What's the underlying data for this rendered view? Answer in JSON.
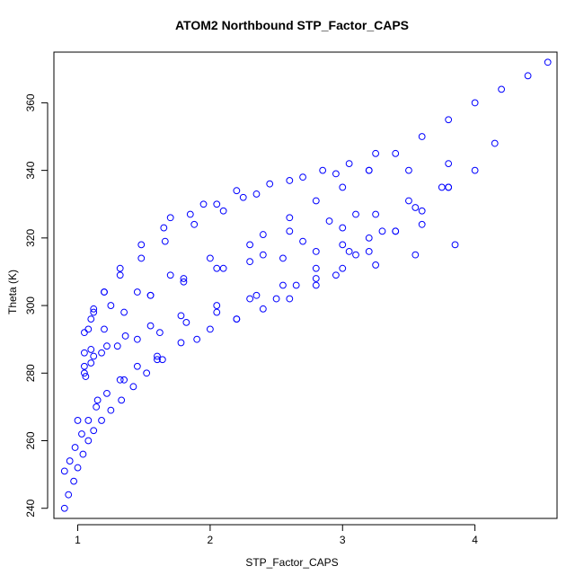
{
  "chart_data": {
    "type": "scatter",
    "title": "ATOM2 Northbound STP_Factor_CAPS",
    "xlabel": "STP_Factor_CAPS",
    "ylabel": "Theta (K)",
    "xlim": [
      0.82,
      4.62
    ],
    "ylim": [
      237,
      375
    ],
    "x_ticks": [
      1,
      2,
      3,
      4
    ],
    "y_ticks": [
      240,
      260,
      280,
      300,
      320,
      340,
      360
    ],
    "marker": "open-circle",
    "color": "#0000ff",
    "grid": false,
    "legend": "none",
    "series": [
      {
        "x": [
          0.9,
          0.93,
          0.97,
          1.0,
          1.04,
          1.08,
          1.12,
          1.18,
          1.25,
          1.33,
          1.42,
          1.52,
          1.64
        ],
        "y": [
          240,
          244,
          248,
          252,
          256,
          260,
          263,
          266,
          269,
          272,
          276,
          280,
          284
        ]
      },
      {
        "x": [
          0.9,
          0.94,
          0.98,
          1.03,
          1.08,
          1.14,
          1.22,
          1.32,
          1.45,
          1.6,
          1.78,
          2.0,
          2.2,
          2.4,
          2.6,
          2.8,
          3.0,
          3.2,
          3.4,
          3.6,
          3.8
        ],
        "y": [
          251,
          254,
          258,
          262,
          266,
          270,
          274,
          278,
          282,
          285,
          289,
          293,
          296,
          299,
          302,
          306,
          311,
          316,
          322,
          328,
          335
        ]
      },
      {
        "x": [
          1.05,
          1.08,
          1.12,
          1.2,
          1.32,
          1.48,
          1.66,
          1.88,
          2.1,
          2.35,
          2.6,
          2.85,
          3.05,
          3.25
        ],
        "y": [
          286,
          293,
          299,
          304,
          309,
          314,
          319,
          324,
          328,
          333,
          337,
          340,
          342,
          345
        ]
      },
      {
        "x": [
          1.05,
          1.1,
          1.2,
          1.35,
          1.55,
          1.8,
          2.1,
          2.4,
          2.7,
          3.0,
          3.25,
          3.5,
          3.75,
          4.0,
          4.15
        ],
        "y": [
          280,
          287,
          293,
          298,
          303,
          307,
          311,
          315,
          319,
          323,
          327,
          331,
          335,
          340,
          348
        ]
      },
      {
        "x": [
          1.06,
          1.1,
          1.18,
          1.3,
          1.45,
          1.62,
          1.82,
          2.05,
          2.3,
          2.55,
          2.8,
          3.05,
          3.3,
          3.55,
          3.8
        ],
        "y": [
          279,
          283,
          286,
          288,
          290,
          292,
          295,
          298,
          302,
          306,
          311,
          316,
          322,
          329,
          335
        ]
      },
      {
        "x": [
          1.05,
          1.12,
          1.22,
          1.36,
          1.55,
          1.78,
          2.05,
          2.35,
          2.65,
          2.95,
          3.25,
          3.55,
          3.85
        ],
        "y": [
          282,
          285,
          288,
          291,
          294,
          297,
          300,
          303,
          306,
          309,
          312,
          315,
          318
        ]
      },
      {
        "x": [
          1.1,
          1.25,
          1.45,
          1.7,
          2.0,
          2.3,
          2.6,
          2.9,
          3.1
        ],
        "y": [
          296,
          300,
          304,
          309,
          314,
          318,
          322,
          325,
          327
        ]
      },
      {
        "x": [
          1.05,
          1.12,
          1.2,
          1.32,
          1.48,
          1.65,
          1.85,
          2.05,
          2.25
        ],
        "y": [
          292,
          298,
          304,
          311,
          318,
          323,
          327,
          330,
          332
        ]
      },
      {
        "x": [
          2.4,
          2.6,
          2.8,
          3.0,
          3.2,
          3.4,
          3.6,
          3.8,
          4.0,
          4.2,
          4.4,
          4.55
        ],
        "y": [
          321,
          326,
          331,
          335,
          340,
          345,
          350,
          355,
          360,
          364,
          368,
          372
        ]
      },
      {
        "x": [
          1.0,
          1.15,
          1.35,
          1.6,
          1.9,
          2.2,
          2.5,
          2.8,
          3.1
        ],
        "y": [
          266,
          272,
          278,
          284,
          290,
          296,
          302,
          308,
          315
        ]
      },
      {
        "x": [
          1.55,
          1.8,
          2.05,
          2.3,
          2.55,
          2.8,
          3.0,
          3.2,
          3.4,
          3.6
        ],
        "y": [
          303,
          308,
          311,
          313,
          314,
          316,
          318,
          320,
          322,
          324
        ]
      },
      {
        "x": [
          1.7,
          1.95,
          2.2,
          2.45,
          2.7,
          2.95,
          3.2,
          3.5,
          3.8
        ],
        "y": [
          326,
          330,
          334,
          336,
          338,
          339,
          340,
          340,
          342
        ]
      }
    ]
  }
}
